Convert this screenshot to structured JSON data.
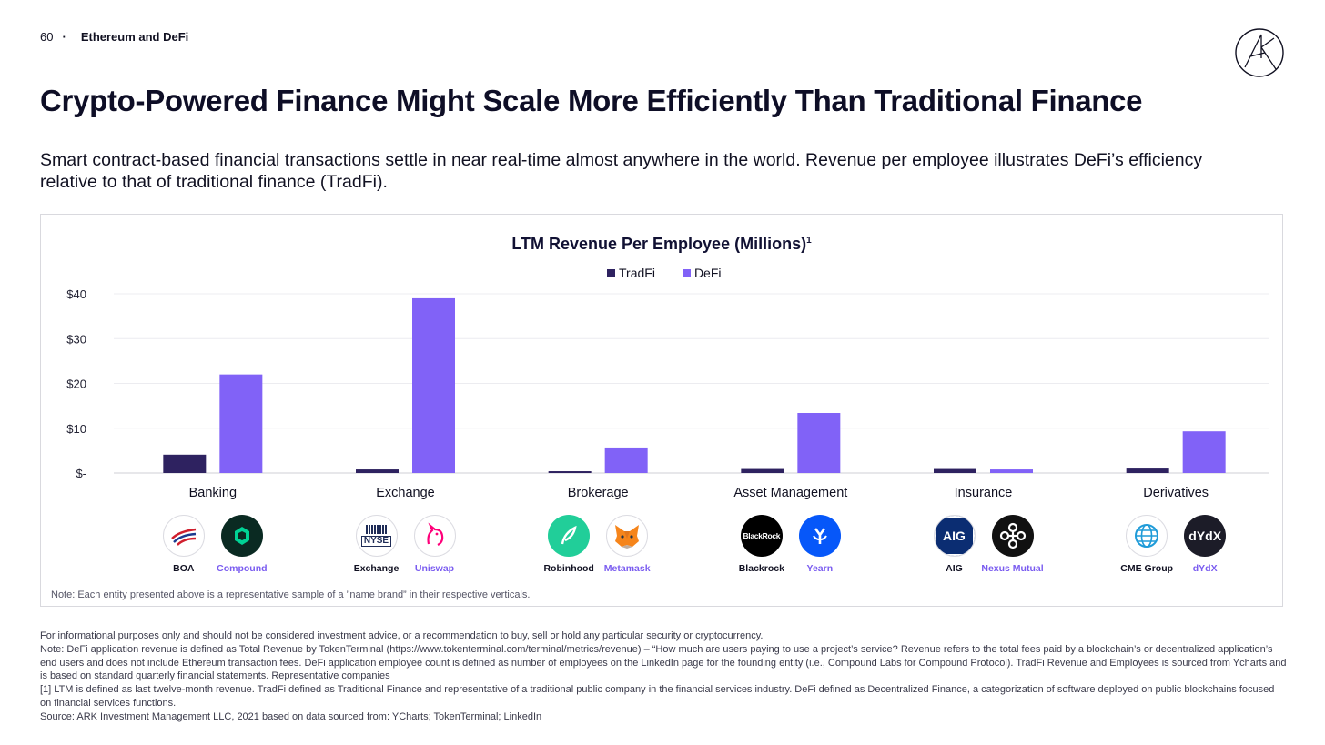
{
  "header": {
    "page_number": "60",
    "separator": "·",
    "section": "Ethereum and DeFi"
  },
  "title": "Crypto-Powered Finance Might Scale More Efficiently Than Traditional Finance",
  "subtitle": "Smart contract-based financial transactions settle in near real-time almost anywhere in the world. Revenue per employee illustrates DeFi’s efficiency relative to that of traditional finance (TradFi).",
  "colors": {
    "tradfi": "#2e2260",
    "defi": "#8162f7",
    "defi_text": "#7a5cf0"
  },
  "chart_data": {
    "type": "bar",
    "title": "LTM Revenue Per Employee (Millions)",
    "title_superscript": "1",
    "categories": [
      "Banking",
      "Exchange",
      "Brokerage",
      "Asset Management",
      "Insurance",
      "Derivatives"
    ],
    "series": [
      {
        "name": "TradFi",
        "values": [
          4.1,
          0.8,
          0.4,
          0.9,
          0.9,
          1.0
        ]
      },
      {
        "name": "DeFi",
        "values": [
          22.0,
          39.0,
          5.7,
          13.4,
          0.8,
          9.3
        ]
      }
    ],
    "yticks": [
      {
        "value": 0,
        "label": "$-"
      },
      {
        "value": 10,
        "label": "$10"
      },
      {
        "value": 20,
        "label": "$20"
      },
      {
        "value": 30,
        "label": "$30"
      },
      {
        "value": 40,
        "label": "$40"
      }
    ],
    "ylim": [
      0,
      40
    ],
    "grid": true,
    "legend_position": "top-center",
    "xlabel": "",
    "ylabel": ""
  },
  "entities": [
    {
      "category": "Banking",
      "tradfi": {
        "name": "BOA",
        "icon": "boa-flag-icon"
      },
      "defi": {
        "name": "Compound",
        "icon": "compound-icon"
      }
    },
    {
      "category": "Exchange",
      "tradfi": {
        "name": "Exchange",
        "icon": "nyse-icon",
        "logo_text": "NYSE"
      },
      "defi": {
        "name": "Uniswap",
        "icon": "unicorn-icon"
      }
    },
    {
      "category": "Brokerage",
      "tradfi": {
        "name": "Robinhood",
        "icon": "feather-icon"
      },
      "defi": {
        "name": "Metamask",
        "icon": "fox-icon"
      }
    },
    {
      "category": "Asset Management",
      "tradfi": {
        "name": "Blackrock",
        "icon": "blackrock-icon",
        "logo_text": "BlackRock"
      },
      "defi": {
        "name": "Yearn",
        "icon": "yearn-icon"
      }
    },
    {
      "category": "Insurance",
      "tradfi": {
        "name": "AIG",
        "icon": "aig-icon",
        "logo_text": "AIG"
      },
      "defi": {
        "name": "Nexus Mutual",
        "icon": "nexus-icon"
      }
    },
    {
      "category": "Derivatives",
      "tradfi": {
        "name": "CME Group",
        "icon": "globe-icon"
      },
      "defi": {
        "name": "dYdX",
        "icon": "dydx-icon",
        "logo_text": "dYdX"
      }
    }
  ],
  "panel_note": "Note: Each entity presented above is a representative sample of a ”name brand” in their respective verticals.",
  "footer": {
    "disclaimer": "For informational purposes only and should not be considered investment advice, or a recommendation to buy, sell or hold any particular security or cryptocurrency.",
    "note": "Note: DeFi application revenue is defined as Total Revenue by TokenTerminal (https://www.tokenterminal.com/terminal/metrics/revenue) – “How much are users paying to use a project’s service? Revenue refers to the total fees paid by a blockchain’s or decentralized application’s end users and does not include Ethereum transaction fees. DeFi application employee count is defined as number of employees on the LinkedIn page for the founding entity (i.e., Compound Labs for Compound Protocol). TradFi Revenue and Employees is sourced from Ycharts and is based on standard quarterly financial statements. Representative companies",
    "footnote": "[1] LTM is defined as last twelve-month revenue. TradFi defined as Traditional Finance and representative of a traditional public company in the financial services industry. DeFi defined as Decentralized Finance, a categorization of software deployed on public blockchains focused on financial services functions.",
    "source": "Source: ARK Investment Management LLC, 2021 based on data sourced from: YCharts; TokenTerminal; LinkedIn"
  }
}
